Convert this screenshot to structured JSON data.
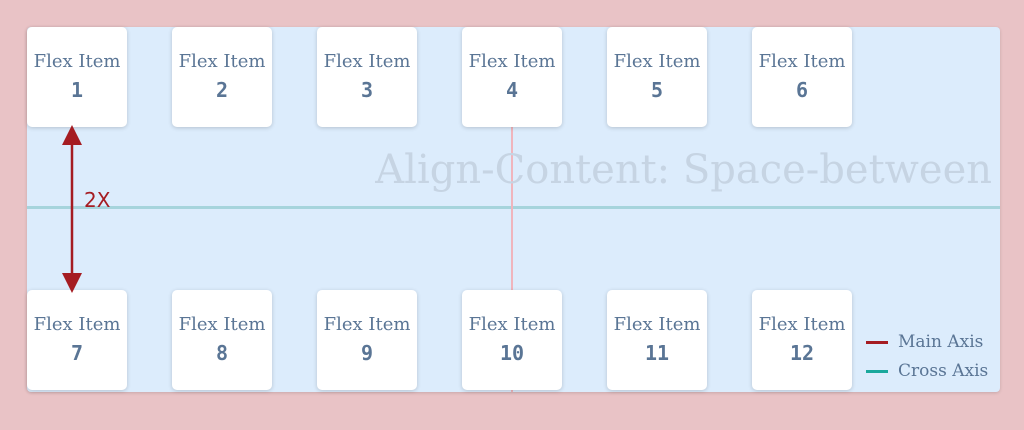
{
  "watermark": "Align-Content: Space-between",
  "item_label": "Flex Item",
  "items": [
    "1",
    "2",
    "3",
    "4",
    "5",
    "6",
    "7",
    "8",
    "9",
    "10",
    "11",
    "12"
  ],
  "gap_label": "2X",
  "legend": {
    "main_axis": {
      "label": "Main Axis",
      "color": "#a51c22"
    },
    "cross_axis": {
      "label": "Cross Axis",
      "color": "#1aa89c"
    }
  },
  "colors": {
    "background": "#e9c3c6",
    "container": "#dcecfc",
    "text": "#5a7595",
    "arrow": "#a51c22"
  }
}
